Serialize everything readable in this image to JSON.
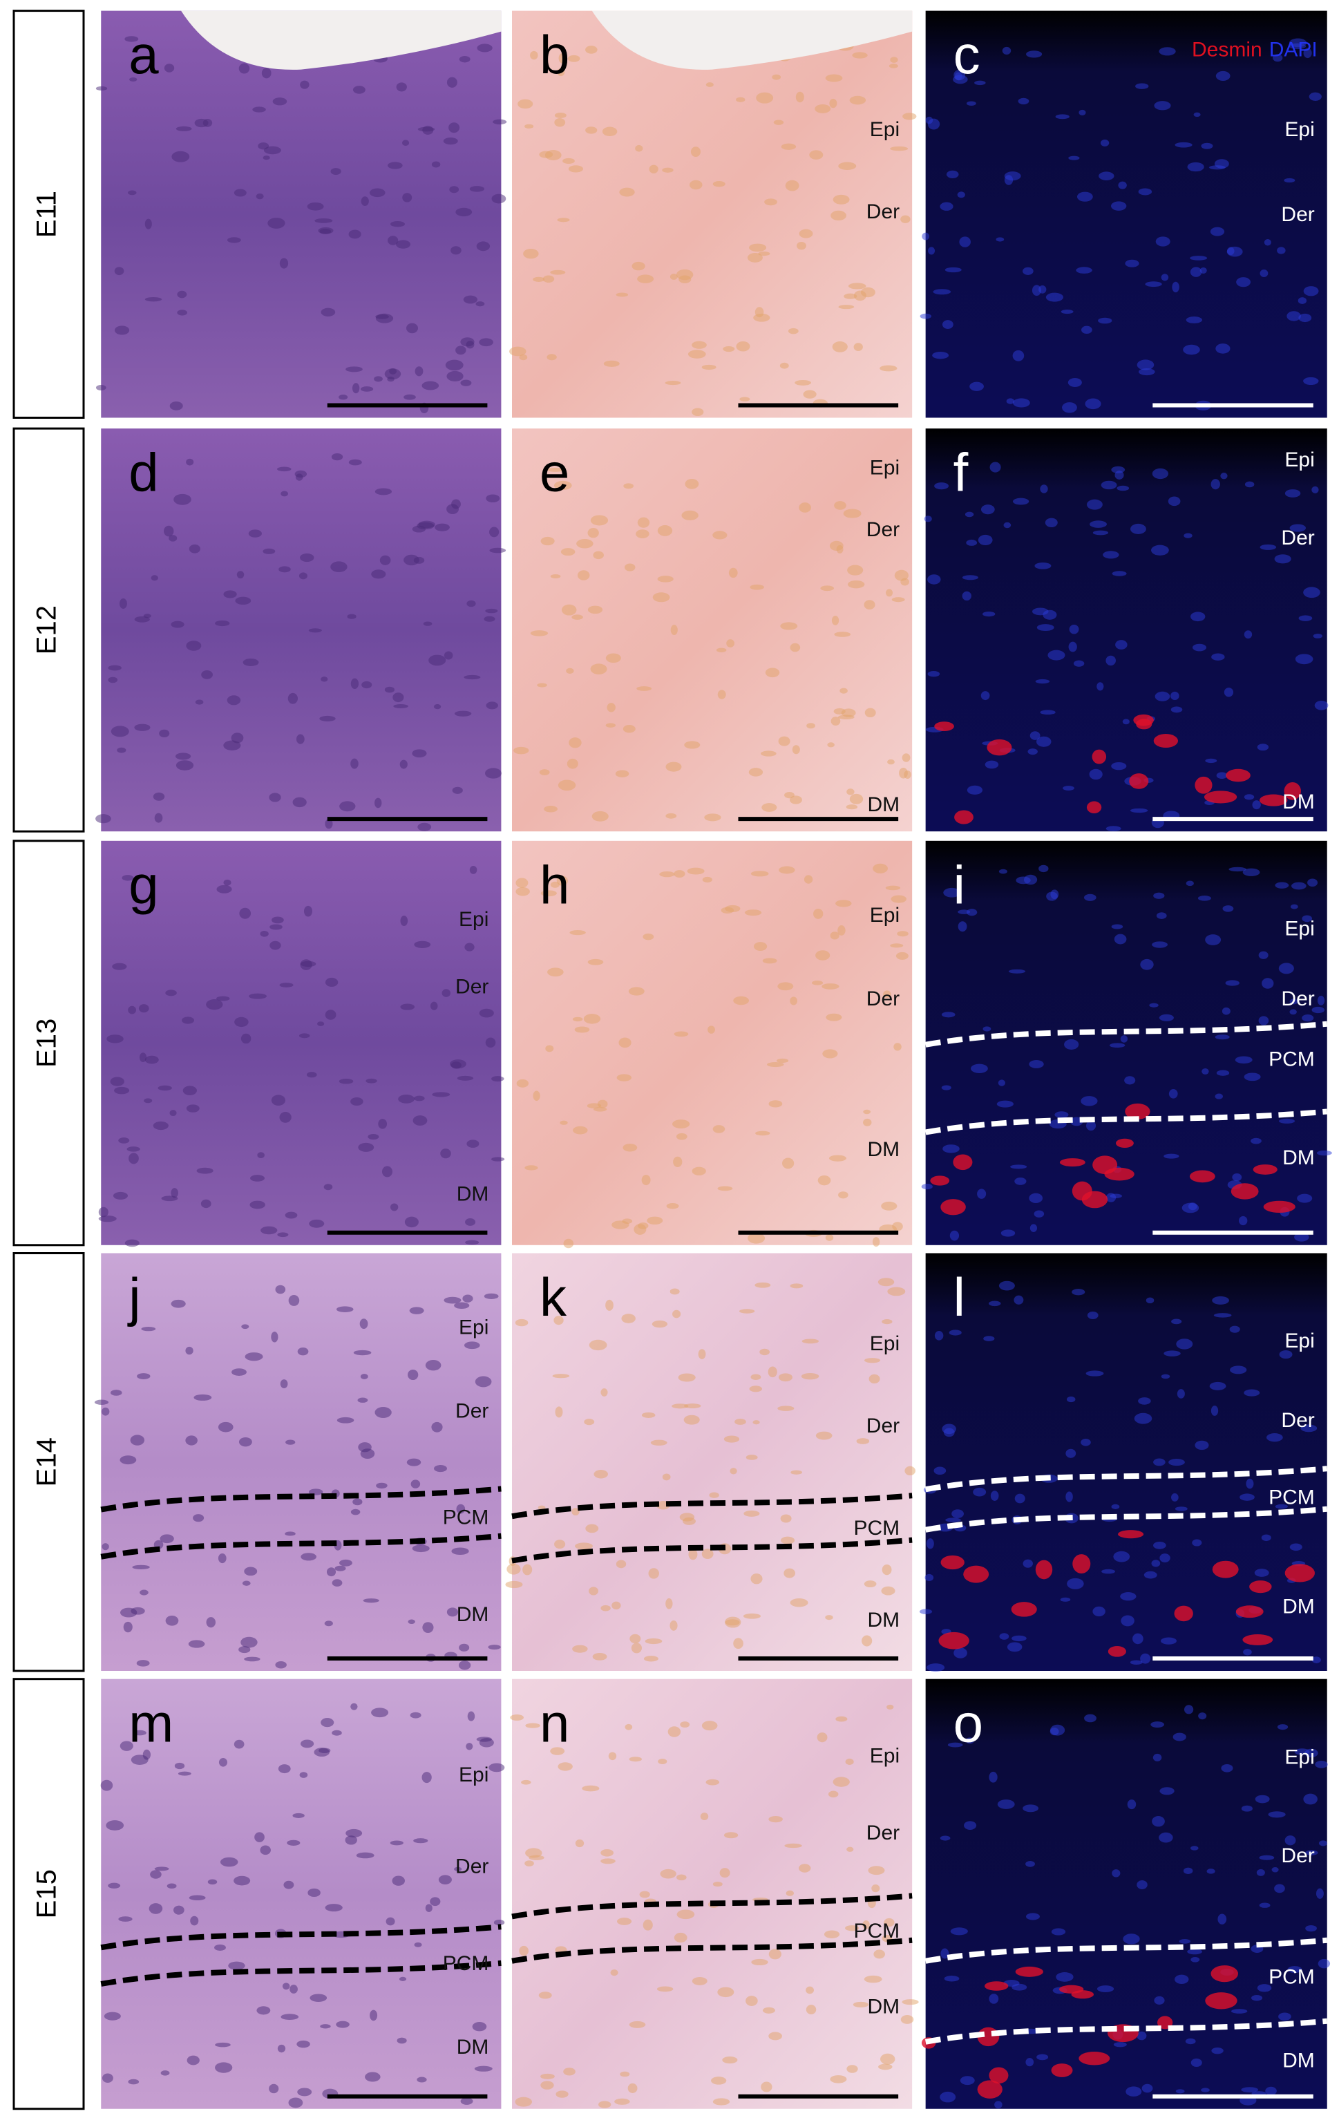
{
  "legend": {
    "desmin": "Desmin",
    "dapi": "DAPI"
  },
  "rows": [
    {
      "stage": "E11",
      "panels": [
        {
          "letter": "a",
          "labels": []
        },
        {
          "letter": "b",
          "labels": [
            "Epi",
            "Der"
          ]
        },
        {
          "letter": "c",
          "labels": [
            "Epi",
            "Der"
          ]
        }
      ]
    },
    {
      "stage": "E12",
      "panels": [
        {
          "letter": "d",
          "labels": []
        },
        {
          "letter": "e",
          "labels": [
            "Epi",
            "Der",
            "DM"
          ]
        },
        {
          "letter": "f",
          "labels": [
            "Epi",
            "Der",
            "DM"
          ]
        }
      ]
    },
    {
      "stage": "E13",
      "panels": [
        {
          "letter": "g",
          "labels": [
            "Epi",
            "Der",
            "DM"
          ]
        },
        {
          "letter": "h",
          "labels": [
            "Epi",
            "Der",
            "DM"
          ]
        },
        {
          "letter": "i",
          "labels": [
            "Epi",
            "Der",
            "PCM",
            "DM"
          ]
        }
      ]
    },
    {
      "stage": "E14",
      "panels": [
        {
          "letter": "j",
          "labels": [
            "Epi",
            "Der",
            "PCM",
            "DM"
          ]
        },
        {
          "letter": "k",
          "labels": [
            "Epi",
            "Der",
            "PCM",
            "DM"
          ]
        },
        {
          "letter": "l",
          "labels": [
            "Epi",
            "Der",
            "PCM",
            "DM"
          ]
        }
      ]
    },
    {
      "stage": "E15",
      "panels": [
        {
          "letter": "m",
          "labels": [
            "Epi",
            "Der",
            "PCM",
            "DM"
          ]
        },
        {
          "letter": "n",
          "labels": [
            "Epi",
            "Der",
            "PCM",
            "DM"
          ]
        },
        {
          "letter": "o",
          "labels": [
            "Epi",
            "Der",
            "PCM",
            "DM"
          ]
        }
      ]
    }
  ]
}
